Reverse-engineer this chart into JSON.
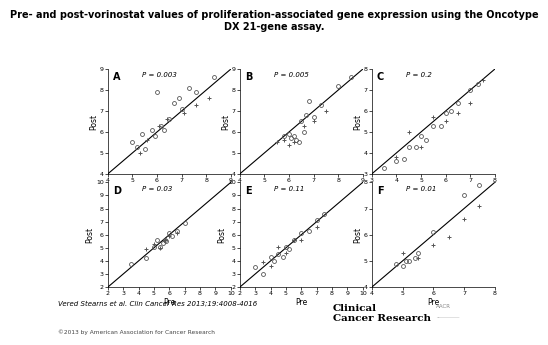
{
  "title": "Pre- and post-vorinostat values of proliferation-associated gene expression using the Oncotype\nDX 21-gene assay.",
  "citation": "Vered Stearns et al. Clin Cancer Res 2013;19:4008-4016",
  "copyright": "©2013 by American Association for Cancer Research",
  "subplots": [
    {
      "label": "A",
      "pvalue": "P = 0.003",
      "xlim": [
        4,
        9
      ],
      "ylim": [
        4,
        9
      ],
      "xticks": [
        4,
        5,
        6,
        7,
        8,
        9
      ],
      "yticks": [
        4,
        5,
        6,
        7,
        8,
        9
      ],
      "circles": [
        [
          5.0,
          5.5
        ],
        [
          5.2,
          5.3
        ],
        [
          5.4,
          5.9
        ],
        [
          5.5,
          5.2
        ],
        [
          5.8,
          6.1
        ],
        [
          5.9,
          5.8
        ],
        [
          6.0,
          7.9
        ],
        [
          6.15,
          6.3
        ],
        [
          6.3,
          6.1
        ],
        [
          6.5,
          6.6
        ],
        [
          6.7,
          7.4
        ],
        [
          6.9,
          7.6
        ],
        [
          7.0,
          7.1
        ],
        [
          7.3,
          8.1
        ],
        [
          7.6,
          7.9
        ],
        [
          8.3,
          8.6
        ]
      ],
      "crosses": [
        [
          5.3,
          5.0
        ],
        [
          5.6,
          5.6
        ],
        [
          6.1,
          6.3
        ],
        [
          6.4,
          6.6
        ],
        [
          7.1,
          6.9
        ],
        [
          7.6,
          7.3
        ],
        [
          8.1,
          7.6
        ]
      ]
    },
    {
      "label": "B",
      "pvalue": "P = 0.005",
      "xlim": [
        4,
        9
      ],
      "ylim": [
        4,
        9
      ],
      "xticks": [
        4,
        5,
        6,
        7,
        8,
        9
      ],
      "yticks": [
        4,
        5,
        6,
        7,
        8,
        9
      ],
      "circles": [
        [
          5.8,
          5.8
        ],
        [
          6.0,
          5.9
        ],
        [
          6.1,
          5.7
        ],
        [
          6.2,
          5.8
        ],
        [
          6.3,
          5.6
        ],
        [
          6.4,
          5.5
        ],
        [
          6.5,
          6.5
        ],
        [
          6.6,
          6.0
        ],
        [
          6.7,
          6.8
        ],
        [
          6.8,
          7.5
        ],
        [
          7.0,
          6.7
        ],
        [
          7.3,
          7.3
        ],
        [
          8.0,
          8.2
        ],
        [
          8.5,
          8.6
        ]
      ],
      "crosses": [
        [
          5.5,
          5.5
        ],
        [
          5.8,
          5.6
        ],
        [
          6.0,
          5.4
        ],
        [
          6.2,
          5.5
        ],
        [
          6.6,
          6.3
        ],
        [
          7.0,
          6.5
        ],
        [
          7.5,
          7.0
        ]
      ]
    },
    {
      "label": "C",
      "pvalue": "P = 0.2",
      "xlim": [
        3,
        8
      ],
      "ylim": [
        3,
        8
      ],
      "xticks": [
        3,
        4,
        5,
        6,
        7,
        8
      ],
      "yticks": [
        3,
        4,
        5,
        6,
        7,
        8
      ],
      "circles": [
        [
          3.5,
          3.3
        ],
        [
          4.0,
          3.6
        ],
        [
          4.3,
          3.7
        ],
        [
          4.5,
          4.3
        ],
        [
          4.8,
          4.3
        ],
        [
          5.0,
          4.8
        ],
        [
          5.2,
          4.6
        ],
        [
          5.5,
          5.3
        ],
        [
          5.8,
          5.3
        ],
        [
          6.0,
          5.9
        ],
        [
          6.2,
          6.0
        ],
        [
          6.5,
          6.4
        ],
        [
          7.0,
          7.0
        ],
        [
          7.3,
          7.3
        ]
      ],
      "crosses": [
        [
          4.0,
          3.8
        ],
        [
          4.5,
          5.0
        ],
        [
          5.0,
          4.3
        ],
        [
          5.5,
          5.7
        ],
        [
          6.0,
          5.5
        ],
        [
          6.5,
          5.9
        ],
        [
          7.0,
          6.4
        ],
        [
          7.5,
          7.5
        ]
      ]
    },
    {
      "label": "D",
      "pvalue": "P = 0.03",
      "xlim": [
        2,
        10
      ],
      "ylim": [
        2,
        10
      ],
      "xticks": [
        2,
        3,
        4,
        5,
        6,
        7,
        8,
        9,
        10
      ],
      "yticks": [
        2,
        3,
        4,
        5,
        6,
        7,
        8,
        9,
        10
      ],
      "circles": [
        [
          3.5,
          3.8
        ],
        [
          4.5,
          4.2
        ],
        [
          5.0,
          5.1
        ],
        [
          5.2,
          5.6
        ],
        [
          5.4,
          5.1
        ],
        [
          5.6,
          5.4
        ],
        [
          5.7,
          5.6
        ],
        [
          5.8,
          5.5
        ],
        [
          6.0,
          6.1
        ],
        [
          6.2,
          5.9
        ],
        [
          6.5,
          6.3
        ],
        [
          7.0,
          6.9
        ]
      ],
      "crosses": [
        [
          4.5,
          4.9
        ],
        [
          5.0,
          5.3
        ],
        [
          5.4,
          5.0
        ],
        [
          5.7,
          5.6
        ],
        [
          6.0,
          5.9
        ],
        [
          6.5,
          6.1
        ]
      ]
    },
    {
      "label": "E",
      "pvalue": "P = 0.11",
      "xlim": [
        2,
        10
      ],
      "ylim": [
        2,
        10
      ],
      "xticks": [
        2,
        3,
        4,
        5,
        6,
        7,
        8,
        9,
        10
      ],
      "yticks": [
        2,
        3,
        4,
        5,
        6,
        7,
        8,
        9,
        10
      ],
      "circles": [
        [
          3.0,
          3.5
        ],
        [
          3.5,
          3.0
        ],
        [
          4.0,
          4.3
        ],
        [
          4.2,
          4.0
        ],
        [
          4.5,
          4.5
        ],
        [
          4.8,
          4.3
        ],
        [
          5.0,
          5.1
        ],
        [
          5.2,
          4.9
        ],
        [
          5.5,
          5.6
        ],
        [
          6.0,
          6.1
        ],
        [
          6.5,
          6.3
        ],
        [
          7.0,
          7.1
        ],
        [
          7.5,
          7.6
        ]
      ],
      "crosses": [
        [
          3.5,
          3.9
        ],
        [
          4.0,
          3.6
        ],
        [
          4.5,
          5.1
        ],
        [
          5.0,
          4.6
        ],
        [
          5.5,
          5.6
        ],
        [
          6.0,
          5.6
        ],
        [
          7.0,
          6.6
        ]
      ]
    },
    {
      "label": "F",
      "pvalue": "P = 0.01",
      "xlim": [
        4,
        8
      ],
      "ylim": [
        4,
        8
      ],
      "xticks": [
        4,
        5,
        6,
        7,
        8
      ],
      "yticks": [
        4,
        5,
        6,
        7,
        8
      ],
      "circles": [
        [
          4.8,
          4.9
        ],
        [
          5.0,
          4.8
        ],
        [
          5.1,
          5.0
        ],
        [
          5.2,
          5.0
        ],
        [
          5.4,
          5.1
        ],
        [
          5.5,
          5.3
        ],
        [
          6.0,
          6.1
        ],
        [
          7.0,
          7.5
        ],
        [
          7.5,
          7.9
        ],
        [
          8.0,
          8.1
        ]
      ],
      "crosses": [
        [
          5.0,
          5.3
        ],
        [
          5.5,
          5.1
        ],
        [
          6.0,
          5.6
        ],
        [
          6.5,
          5.9
        ],
        [
          7.0,
          6.6
        ],
        [
          7.5,
          7.1
        ]
      ]
    }
  ]
}
